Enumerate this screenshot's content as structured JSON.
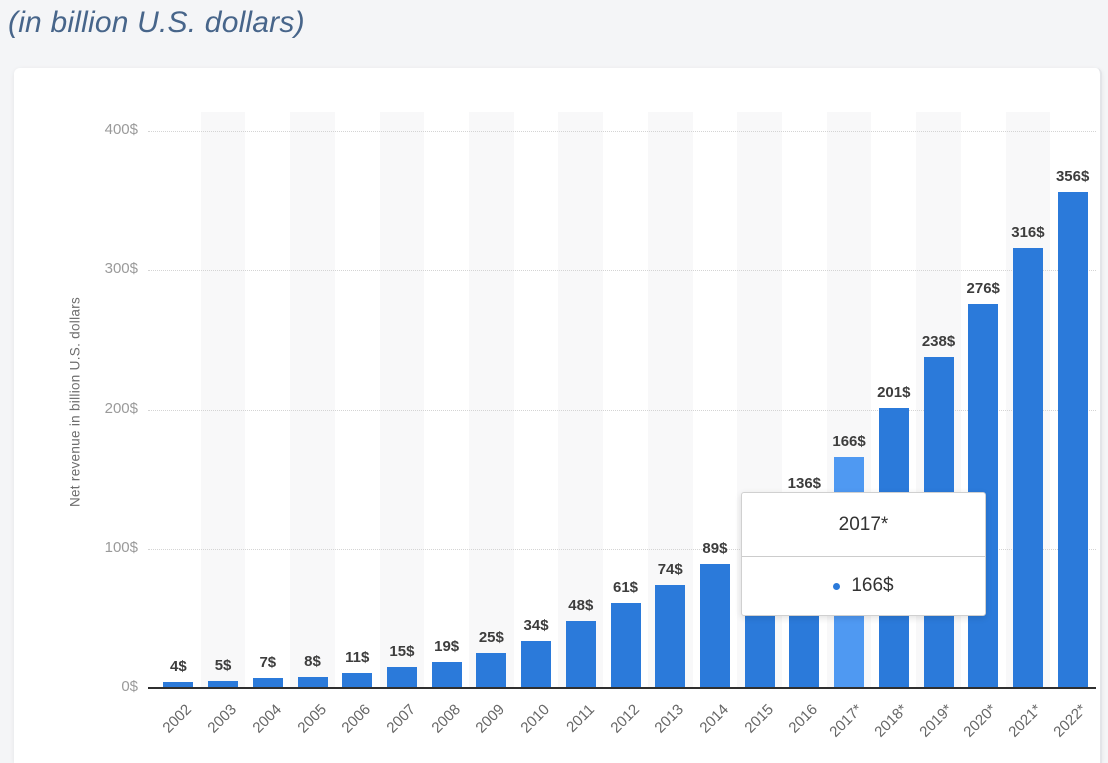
{
  "page": {
    "title": "(in billion U.S. dollars)",
    "title_color": "#47658a",
    "background_color": "#f4f5f7",
    "card_background_color": "#ffffff"
  },
  "chart_data": {
    "type": "bar",
    "title": "(in billion U.S. dollars)",
    "xlabel": "",
    "ylabel": "Net revenue in billion U.S. dollars",
    "categories": [
      "2002",
      "2003",
      "2004",
      "2005",
      "2006",
      "2007",
      "2008",
      "2009",
      "2010",
      "2011",
      "2012",
      "2013",
      "2014",
      "2015",
      "2016",
      "2017*",
      "2018*",
      "2019*",
      "2020*",
      "2021*",
      "2022*"
    ],
    "values": [
      4,
      5,
      7,
      8,
      11,
      15,
      19,
      25,
      34,
      48,
      61,
      74,
      89,
      107,
      136,
      166,
      201,
      238,
      276,
      316,
      356
    ],
    "value_suffix": "$",
    "ylim": [
      0,
      400
    ],
    "yticks": [
      0,
      100,
      200,
      300,
      400
    ],
    "ytick_suffix": "$",
    "grid": "horizontal-dotted",
    "legend": "none",
    "bar_color": "#2b7ada",
    "highlighted_bar_color": "#4f99f2",
    "highlight_index": 15,
    "plot_band_color": "#f8f8f9",
    "plot_bands_on_alternate_categories": true,
    "labels_hidden_for_indices": [
      13
    ]
  },
  "tooltip": {
    "title": "2017*",
    "value": "166$",
    "bullet_color": "#2b7ada"
  }
}
